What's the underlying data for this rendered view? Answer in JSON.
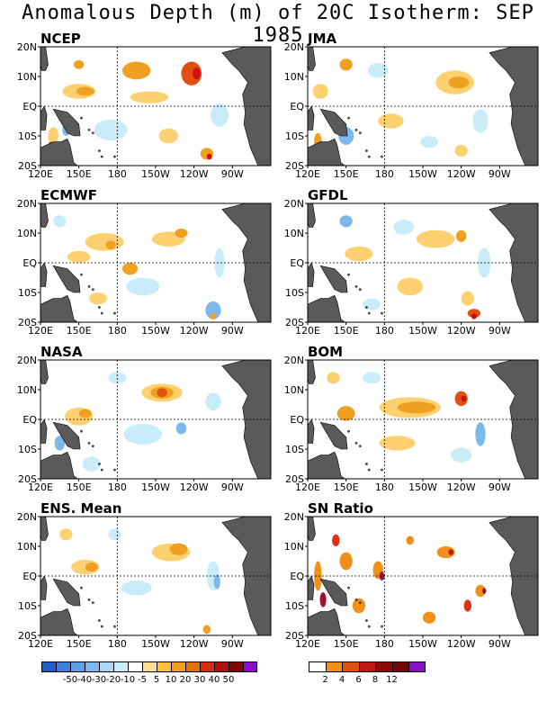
{
  "title": "Anomalous Depth (m) of 20C Isotherm: SEP 1985",
  "axes": {
    "y_ticks": [
      "20N",
      "10N",
      "EQ",
      "10S",
      "20S"
    ],
    "x_ticks": [
      "120E",
      "150E",
      "180",
      "150W",
      "120W",
      "90W"
    ]
  },
  "panels": [
    {
      "name": "NCEP",
      "kind": "anom",
      "blobs": [
        {
          "lon": 195,
          "lat": 12,
          "w": 22,
          "h": 6,
          "c": "#f0a020"
        },
        {
          "lon": 238,
          "lat": 11,
          "w": 16,
          "h": 8,
          "c": "#e05010"
        },
        {
          "lon": 242,
          "lat": 11,
          "w": 6,
          "h": 4,
          "c": "#d01010"
        },
        {
          "lon": 150,
          "lat": 5,
          "w": 26,
          "h": 5,
          "c": "#ffd070"
        },
        {
          "lon": 155,
          "lat": 5,
          "w": 14,
          "h": 3,
          "c": "#f0a020"
        },
        {
          "lon": 205,
          "lat": 3,
          "w": 30,
          "h": 4,
          "c": "#ffd070"
        },
        {
          "lon": 150,
          "lat": 14,
          "w": 8,
          "h": 3,
          "c": "#f0a020"
        },
        {
          "lon": 250,
          "lat": -16,
          "w": 10,
          "h": 4,
          "c": "#f0a020"
        },
        {
          "lon": 252,
          "lat": -17,
          "w": 4,
          "h": 2,
          "c": "#d01010"
        },
        {
          "lon": 175,
          "lat": -8,
          "w": 26,
          "h": 7,
          "c": "#c8ecf8"
        },
        {
          "lon": 260,
          "lat": -3,
          "w": 14,
          "h": 8,
          "c": "#c8ecf8"
        },
        {
          "lon": 130,
          "lat": -10,
          "w": 8,
          "h": 6,
          "c": "#ffd070"
        },
        {
          "lon": 128,
          "lat": -14,
          "w": 5,
          "h": 4,
          "c": "#e05010"
        },
        {
          "lon": 140,
          "lat": -8,
          "w": 6,
          "h": 4,
          "c": "#7cb8ec"
        },
        {
          "lon": 220,
          "lat": -10,
          "w": 15,
          "h": 5,
          "c": "#ffd070"
        }
      ]
    },
    {
      "name": "JMA",
      "kind": "anom",
      "blobs": [
        {
          "lon": 235,
          "lat": 8,
          "w": 30,
          "h": 8,
          "c": "#ffd070"
        },
        {
          "lon": 238,
          "lat": 8,
          "w": 16,
          "h": 4,
          "c": "#f0a020"
        },
        {
          "lon": 150,
          "lat": 14,
          "w": 10,
          "h": 4,
          "c": "#f0a020"
        },
        {
          "lon": 130,
          "lat": 5,
          "w": 12,
          "h": 5,
          "c": "#ffd070"
        },
        {
          "lon": 175,
          "lat": 12,
          "w": 16,
          "h": 5,
          "c": "#c8ecf8"
        },
        {
          "lon": 185,
          "lat": -5,
          "w": 20,
          "h": 5,
          "c": "#ffd070"
        },
        {
          "lon": 255,
          "lat": -5,
          "w": 12,
          "h": 8,
          "c": "#c8ecf8"
        },
        {
          "lon": 150,
          "lat": -10,
          "w": 12,
          "h": 6,
          "c": "#7cb8ec"
        },
        {
          "lon": 128,
          "lat": -12,
          "w": 6,
          "h": 6,
          "c": "#f0a020"
        },
        {
          "lon": 215,
          "lat": -12,
          "w": 14,
          "h": 4,
          "c": "#c8ecf8"
        },
        {
          "lon": 240,
          "lat": -15,
          "w": 10,
          "h": 4,
          "c": "#ffd070"
        }
      ]
    },
    {
      "name": "ECMWF",
      "kind": "anom",
      "blobs": [
        {
          "lon": 170,
          "lat": 7,
          "w": 30,
          "h": 6,
          "c": "#ffd070"
        },
        {
          "lon": 175,
          "lat": 6,
          "w": 8,
          "h": 3,
          "c": "#f0a020"
        },
        {
          "lon": 220,
          "lat": 8,
          "w": 26,
          "h": 5,
          "c": "#ffd070"
        },
        {
          "lon": 230,
          "lat": 10,
          "w": 10,
          "h": 3,
          "c": "#f0a020"
        },
        {
          "lon": 150,
          "lat": 2,
          "w": 18,
          "h": 4,
          "c": "#ffd070"
        },
        {
          "lon": 190,
          "lat": -2,
          "w": 12,
          "h": 4,
          "c": "#f0a020"
        },
        {
          "lon": 200,
          "lat": -8,
          "w": 26,
          "h": 6,
          "c": "#c8ecf8"
        },
        {
          "lon": 255,
          "lat": -16,
          "w": 12,
          "h": 6,
          "c": "#7cb8ec"
        },
        {
          "lon": 255,
          "lat": -18,
          "w": 5,
          "h": 2,
          "c": "#f0a020"
        },
        {
          "lon": 165,
          "lat": -12,
          "w": 14,
          "h": 4,
          "c": "#ffd070"
        },
        {
          "lon": 135,
          "lat": 14,
          "w": 10,
          "h": 4,
          "c": "#c8ecf8"
        },
        {
          "lon": 260,
          "lat": 0,
          "w": 8,
          "h": 10,
          "c": "#c8ecf8"
        }
      ]
    },
    {
      "name": "GFDL",
      "kind": "anom",
      "blobs": [
        {
          "lon": 220,
          "lat": 8,
          "w": 30,
          "h": 6,
          "c": "#ffd070"
        },
        {
          "lon": 240,
          "lat": 9,
          "w": 8,
          "h": 4,
          "c": "#f0a020"
        },
        {
          "lon": 160,
          "lat": 3,
          "w": 22,
          "h": 5,
          "c": "#ffd070"
        },
        {
          "lon": 150,
          "lat": 14,
          "w": 10,
          "h": 4,
          "c": "#7cb8ec"
        },
        {
          "lon": 195,
          "lat": 12,
          "w": 16,
          "h": 5,
          "c": "#c8ecf8"
        },
        {
          "lon": 200,
          "lat": -8,
          "w": 20,
          "h": 6,
          "c": "#ffd070"
        },
        {
          "lon": 245,
          "lat": -12,
          "w": 10,
          "h": 5,
          "c": "#ffd070"
        },
        {
          "lon": 250,
          "lat": -17,
          "w": 10,
          "h": 3,
          "c": "#e05010"
        },
        {
          "lon": 250,
          "lat": -18,
          "w": 4,
          "h": 2,
          "c": "#d01010"
        },
        {
          "lon": 170,
          "lat": -14,
          "w": 14,
          "h": 4,
          "c": "#c8ecf8"
        },
        {
          "lon": 258,
          "lat": 0,
          "w": 10,
          "h": 10,
          "c": "#c8ecf8"
        }
      ]
    },
    {
      "name": "NASA",
      "kind": "anom",
      "blobs": [
        {
          "lon": 215,
          "lat": 9,
          "w": 32,
          "h": 6,
          "c": "#ffd070"
        },
        {
          "lon": 215,
          "lat": 9,
          "w": 18,
          "h": 4,
          "c": "#f0a020"
        },
        {
          "lon": 215,
          "lat": 9,
          "w": 8,
          "h": 3,
          "c": "#e05010"
        },
        {
          "lon": 150,
          "lat": 1,
          "w": 22,
          "h": 6,
          "c": "#ffd070"
        },
        {
          "lon": 155,
          "lat": 2,
          "w": 10,
          "h": 3,
          "c": "#f0a020"
        },
        {
          "lon": 180,
          "lat": 14,
          "w": 14,
          "h": 4,
          "c": "#c8ecf8"
        },
        {
          "lon": 200,
          "lat": -5,
          "w": 30,
          "h": 7,
          "c": "#c8ecf8"
        },
        {
          "lon": 230,
          "lat": -3,
          "w": 8,
          "h": 4,
          "c": "#7cb8ec"
        },
        {
          "lon": 255,
          "lat": 6,
          "w": 12,
          "h": 6,
          "c": "#c8ecf8"
        },
        {
          "lon": 135,
          "lat": -8,
          "w": 8,
          "h": 5,
          "c": "#7cb8ec"
        },
        {
          "lon": 160,
          "lat": -15,
          "w": 14,
          "h": 5,
          "c": "#c8ecf8"
        }
      ]
    },
    {
      "name": "BOM",
      "kind": "anom",
      "blobs": [
        {
          "lon": 200,
          "lat": 4,
          "w": 48,
          "h": 7,
          "c": "#ffd070"
        },
        {
          "lon": 205,
          "lat": 4,
          "w": 30,
          "h": 4,
          "c": "#f0a020"
        },
        {
          "lon": 240,
          "lat": 7,
          "w": 10,
          "h": 5,
          "c": "#e05010"
        },
        {
          "lon": 242,
          "lat": 7,
          "w": 4,
          "h": 2,
          "c": "#d01010"
        },
        {
          "lon": 150,
          "lat": 2,
          "w": 14,
          "h": 5,
          "c": "#f0a020"
        },
        {
          "lon": 140,
          "lat": 14,
          "w": 10,
          "h": 4,
          "c": "#ffd070"
        },
        {
          "lon": 190,
          "lat": -8,
          "w": 28,
          "h": 5,
          "c": "#ffd070"
        },
        {
          "lon": 240,
          "lat": -12,
          "w": 16,
          "h": 5,
          "c": "#c8ecf8"
        },
        {
          "lon": 255,
          "lat": -5,
          "w": 8,
          "h": 8,
          "c": "#7cb8ec"
        },
        {
          "lon": 170,
          "lat": 14,
          "w": 14,
          "h": 4,
          "c": "#c8ecf8"
        },
        {
          "lon": 130,
          "lat": -14,
          "w": 6,
          "h": 4,
          "c": "#ffd070"
        }
      ]
    },
    {
      "name": "ENS. Mean",
      "kind": "anom",
      "blobs": [
        {
          "lon": 222,
          "lat": 8,
          "w": 30,
          "h": 6,
          "c": "#ffd070"
        },
        {
          "lon": 228,
          "lat": 9,
          "w": 14,
          "h": 4,
          "c": "#f0a020"
        },
        {
          "lon": 155,
          "lat": 3,
          "w": 22,
          "h": 5,
          "c": "#ffd070"
        },
        {
          "lon": 160,
          "lat": 3,
          "w": 10,
          "h": 3,
          "c": "#f0a020"
        },
        {
          "lon": 195,
          "lat": -4,
          "w": 24,
          "h": 5,
          "c": "#c8ecf8"
        },
        {
          "lon": 255,
          "lat": 0,
          "w": 10,
          "h": 10,
          "c": "#c8ecf8"
        },
        {
          "lon": 258,
          "lat": -2,
          "w": 5,
          "h": 5,
          "c": "#7cb8ec"
        },
        {
          "lon": 250,
          "lat": -18,
          "w": 6,
          "h": 3,
          "c": "#f0a020"
        },
        {
          "lon": 140,
          "lat": 14,
          "w": 10,
          "h": 4,
          "c": "#ffd070"
        },
        {
          "lon": 178,
          "lat": 14,
          "w": 10,
          "h": 4,
          "c": "#c8ecf8"
        }
      ]
    },
    {
      "name": "SN Ratio",
      "kind": "sn",
      "blobs": [
        {
          "lon": 150,
          "lat": 5,
          "w": 10,
          "h": 6,
          "c": "#f09018"
        },
        {
          "lon": 142,
          "lat": 12,
          "w": 6,
          "h": 4,
          "c": "#e03018"
        },
        {
          "lon": 128,
          "lat": 0,
          "w": 6,
          "h": 10,
          "c": "#f09018"
        },
        {
          "lon": 132,
          "lat": -8,
          "w": 5,
          "h": 5,
          "c": "#a01030"
        },
        {
          "lon": 175,
          "lat": 2,
          "w": 8,
          "h": 6,
          "c": "#f09018"
        },
        {
          "lon": 178,
          "lat": 0,
          "w": 4,
          "h": 3,
          "c": "#a01030"
        },
        {
          "lon": 160,
          "lat": -10,
          "w": 10,
          "h": 5,
          "c": "#f09018"
        },
        {
          "lon": 228,
          "lat": 8,
          "w": 14,
          "h": 4,
          "c": "#f09018"
        },
        {
          "lon": 232,
          "lat": 8,
          "w": 4,
          "h": 2,
          "c": "#c01818"
        },
        {
          "lon": 255,
          "lat": -5,
          "w": 8,
          "h": 4,
          "c": "#f09018"
        },
        {
          "lon": 258,
          "lat": -5,
          "w": 3,
          "h": 2,
          "c": "#a01030"
        },
        {
          "lon": 215,
          "lat": -14,
          "w": 10,
          "h": 4,
          "c": "#f09018"
        },
        {
          "lon": 245,
          "lat": -10,
          "w": 6,
          "h": 4,
          "c": "#e03018"
        },
        {
          "lon": 200,
          "lat": 12,
          "w": 6,
          "h": 3,
          "c": "#f09018"
        },
        {
          "lon": 138,
          "lat": -16,
          "w": 6,
          "h": 3,
          "c": "#8a10b8"
        }
      ]
    }
  ],
  "colorbar_anom": {
    "colors": [
      "#1f5fc8",
      "#3c80e0",
      "#5ca0ec",
      "#7cb8ec",
      "#a8d8f6",
      "#c8ecf8",
      "#ffffff",
      "#ffe090",
      "#ffc040",
      "#f0a020",
      "#e07010",
      "#d03010",
      "#b01010",
      "#800808",
      "#8a10c8"
    ],
    "labels": [
      "-50",
      "-40",
      "-30",
      "-20",
      "-10",
      "-5",
      "5",
      "10",
      "20",
      "30",
      "40",
      "50"
    ]
  },
  "colorbar_sn": {
    "colors": [
      "#ffffff",
      "#f09018",
      "#e05010",
      "#c01818",
      "#8c0a0a",
      "#700808",
      "#8a10c8"
    ],
    "labels": [
      "2",
      "4",
      "6",
      "8",
      "12"
    ]
  },
  "colors": {
    "land": "#5a5a5a",
    "grid_dash": "#000000"
  }
}
